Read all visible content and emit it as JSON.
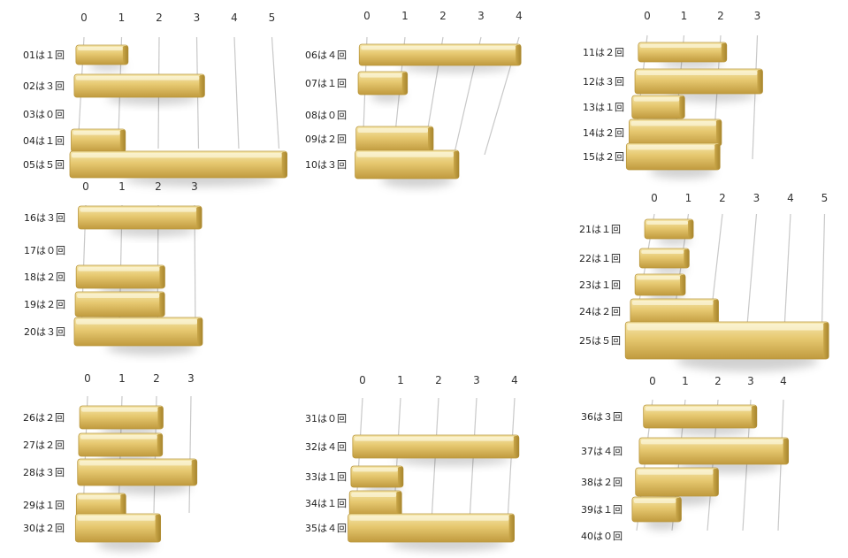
{
  "colors": {
    "bar_top": "#f4e2a2",
    "bar_mid": "#e6c870",
    "bar_bottom": "#c9a648",
    "bar_edge": "#b08d34",
    "grid": "#c8c8c8",
    "text": "#222222"
  },
  "chart_data": [
    {
      "type": "bar",
      "orientation": "horizontal",
      "categories": [
        "01は１回",
        "02は３回",
        "03は０回",
        "04は１回",
        "05は５回"
      ],
      "values": [
        1,
        3,
        0,
        1,
        5
      ],
      "xticks": [
        "0",
        "1",
        "2",
        "3",
        "4",
        "5"
      ],
      "xlim": [
        0,
        5
      ]
    },
    {
      "type": "bar",
      "orientation": "horizontal",
      "categories": [
        "06は４回",
        "07は１回",
        "08は０回",
        "09は２回",
        "10は３回"
      ],
      "values": [
        4,
        1,
        0,
        2,
        3
      ],
      "xticks": [
        "0",
        "1",
        "2",
        "3",
        "4"
      ],
      "xlim": [
        0,
        4
      ]
    },
    {
      "type": "bar",
      "orientation": "horizontal",
      "categories": [
        "11は２回",
        "12は３回",
        "13は１回",
        "14は２回",
        "15は２回"
      ],
      "values": [
        2,
        3,
        1,
        2,
        2
      ],
      "xticks": [
        "0",
        "1",
        "2",
        "3"
      ],
      "xlim": [
        0,
        3
      ]
    },
    {
      "type": "bar",
      "orientation": "horizontal",
      "categories": [
        "16は３回",
        "17は０回",
        "18は２回",
        "19は２回",
        "20は３回"
      ],
      "values": [
        3,
        0,
        2,
        2,
        3
      ],
      "xticks": [
        "0",
        "1",
        "2",
        "3"
      ],
      "xlim": [
        0,
        3
      ]
    },
    {
      "type": "bar",
      "orientation": "horizontal",
      "categories": [
        "21は１回",
        "22は１回",
        "23は１回",
        "24は２回",
        "25は５回"
      ],
      "values": [
        1,
        1,
        1,
        2,
        5
      ],
      "xticks": [
        "0",
        "1",
        "2",
        "3",
        "4",
        "5"
      ],
      "xlim": [
        0,
        5
      ]
    },
    {
      "type": "bar",
      "orientation": "horizontal",
      "categories": [
        "26は２回",
        "27は２回",
        "28は３回",
        "29は１回",
        "30は２回"
      ],
      "values": [
        2,
        2,
        3,
        1,
        2
      ],
      "xticks": [
        "0",
        "1",
        "2",
        "3"
      ],
      "xlim": [
        0,
        3
      ]
    },
    {
      "type": "bar",
      "orientation": "horizontal",
      "categories": [
        "31は０回",
        "32は４回",
        "33は１回",
        "34は１回",
        "35は４回"
      ],
      "values": [
        0,
        4,
        1,
        1,
        4
      ],
      "xticks": [
        "0",
        "1",
        "2",
        "3",
        "4"
      ],
      "xlim": [
        0,
        4
      ]
    },
    {
      "type": "bar",
      "orientation": "horizontal",
      "categories": [
        "36は３回",
        "37は４回",
        "38は２回",
        "39は１回",
        "40は０回"
      ],
      "values": [
        3,
        4,
        2,
        1,
        0
      ],
      "xticks": [
        "0",
        "1",
        "2",
        "3",
        "4"
      ],
      "xlim": [
        0,
        4
      ]
    }
  ]
}
